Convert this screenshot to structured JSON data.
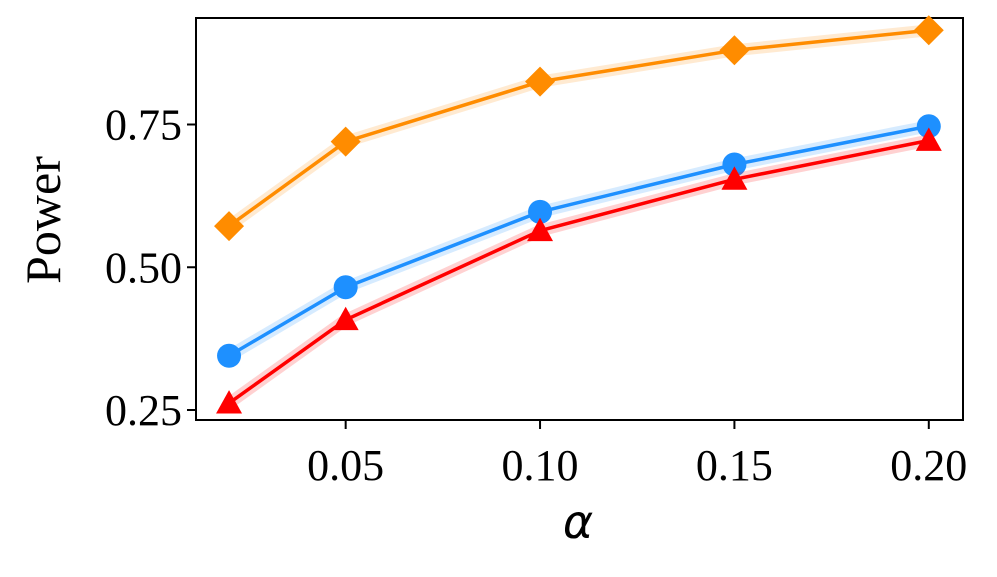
{
  "chart_data": {
    "type": "line",
    "title": "",
    "xlabel": "α",
    "ylabel": "Power",
    "x": [
      0.02,
      0.05,
      0.1,
      0.15,
      0.2
    ],
    "xlim": [
      0.0115,
      0.2088
    ],
    "ylim": [
      0.2325,
      0.9365
    ],
    "xticks": [
      0.05,
      0.1,
      0.15,
      0.2
    ],
    "xtick_labels": [
      "0.05",
      "0.10",
      "0.15",
      "0.20"
    ],
    "yticks": [
      0.25,
      0.5,
      0.75
    ],
    "ytick_labels": [
      "0.25",
      "0.50",
      "0.75"
    ],
    "grid": false,
    "legend": false,
    "series": [
      {
        "values": [
          0.572,
          0.72,
          0.825,
          0.88,
          0.915
        ],
        "color": "#ff8c00",
        "marker": "diamond"
      },
      {
        "values": [
          0.345,
          0.465,
          0.597,
          0.68,
          0.747
        ],
        "color": "#1e90ff",
        "marker": "circle"
      },
      {
        "values": [
          0.262,
          0.408,
          0.564,
          0.654,
          0.722
        ],
        "color": "#ff0000",
        "marker": "triangle"
      }
    ]
  }
}
